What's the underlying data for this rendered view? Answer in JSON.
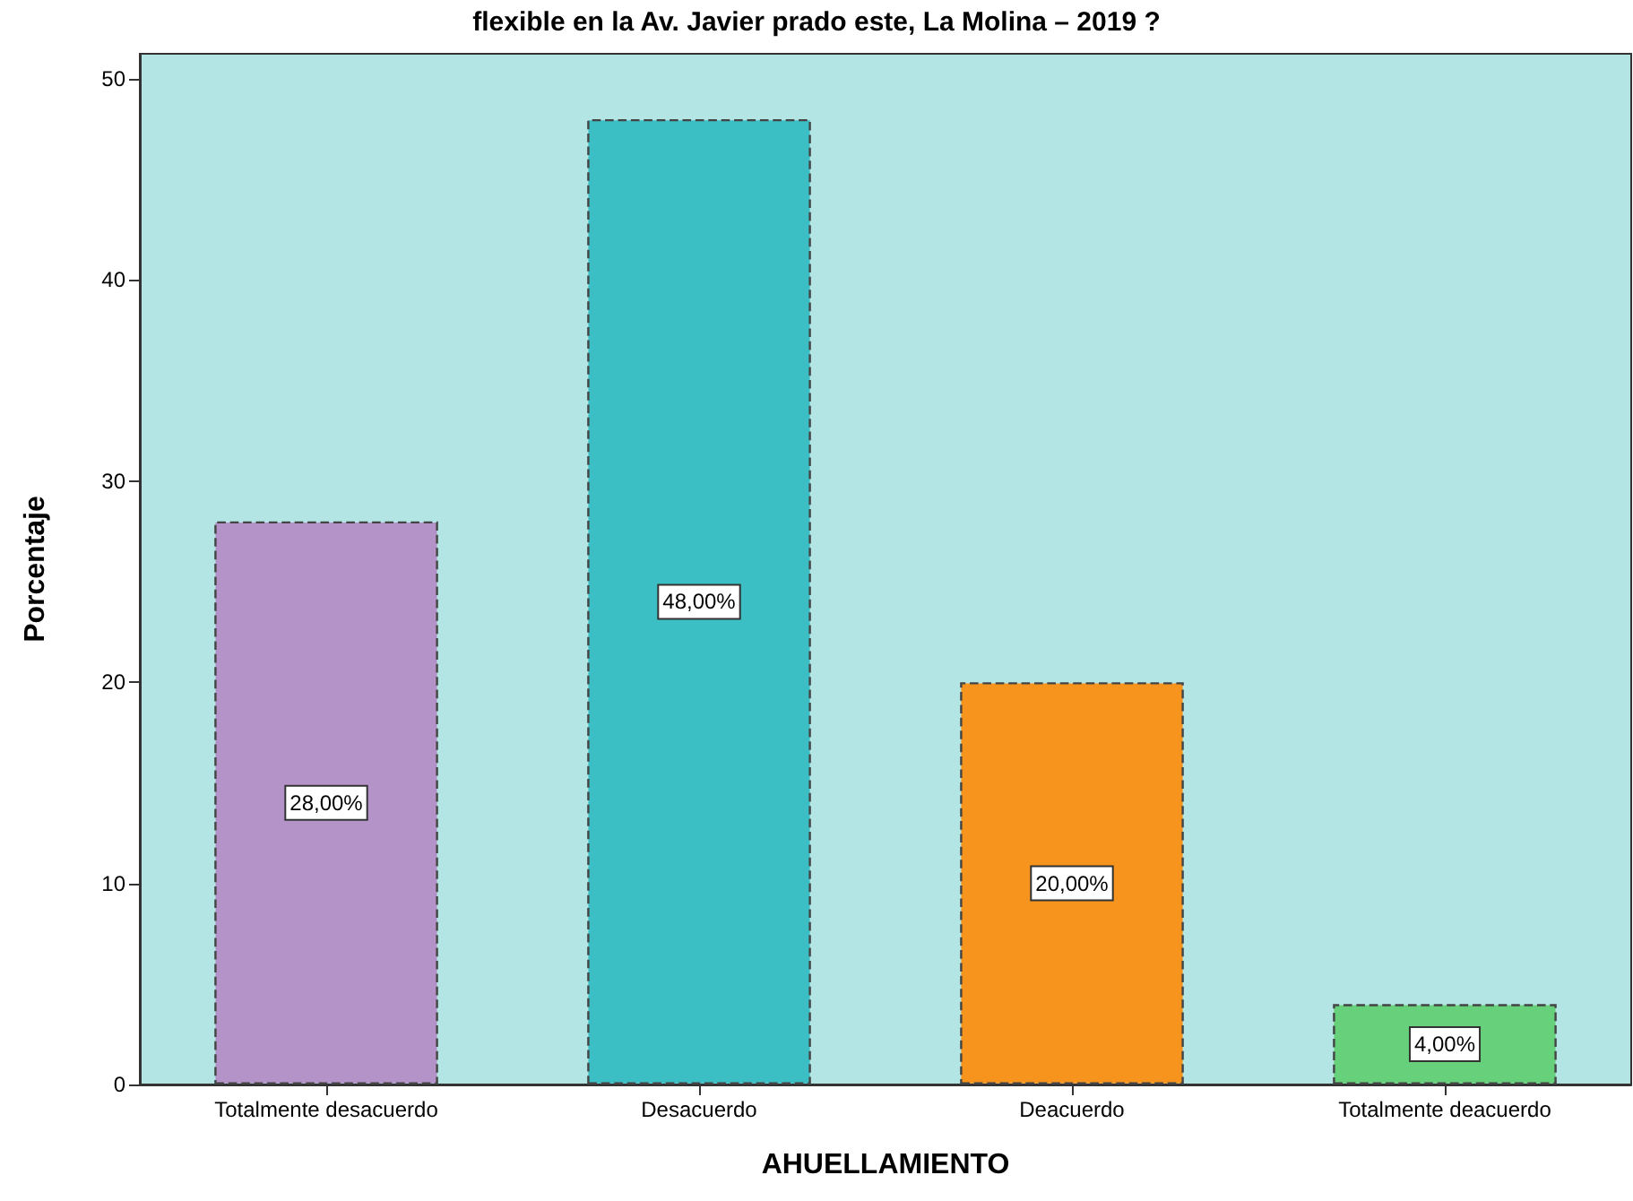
{
  "chart_data": {
    "type": "bar",
    "title": "flexible en la Av. Javier prado este, La Molina – 2019 ?",
    "xlabel": "AHUELLAMIENTO",
    "ylabel": "Porcentaje",
    "categories": [
      "Totalmente desacuerdo",
      "Desacuerdo",
      "Deacuerdo",
      "Totalmente deacuerdo"
    ],
    "values": [
      28,
      48,
      20,
      4
    ],
    "colors": [
      "#b494c8",
      "#3cbfc4",
      "#f7941d",
      "#66d17a"
    ],
    "value_labels": [
      "28,00%",
      "48,00%",
      "20,00%",
      "4,00%"
    ],
    "ylim": [
      0,
      51.25
    ],
    "yticks": [
      0,
      10,
      20,
      30,
      40,
      50
    ],
    "grid": false
  }
}
